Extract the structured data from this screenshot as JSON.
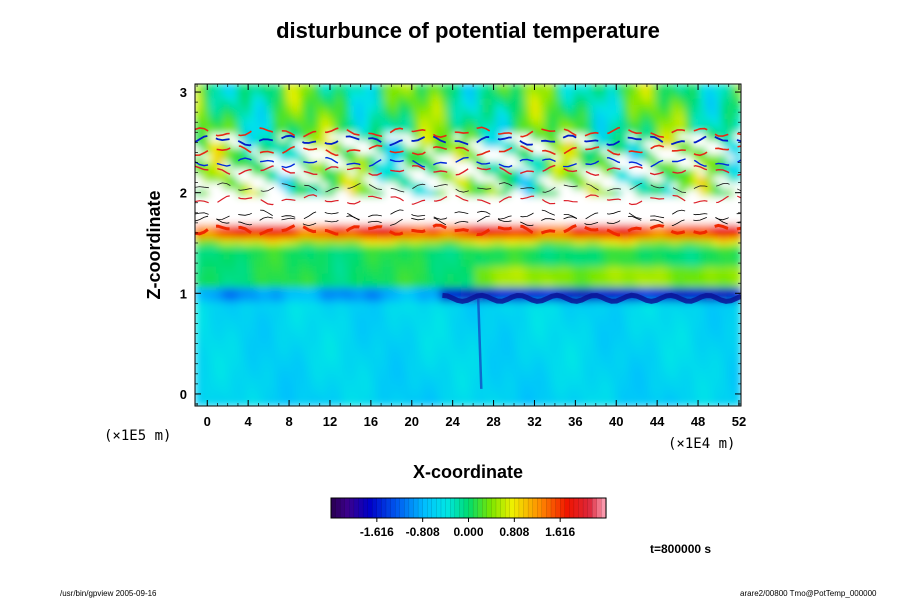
{
  "chart_data": {
    "type": "heatmap",
    "title": "disturbunce of potential temperature",
    "xlabel": "X-coordinate",
    "ylabel": "Z-coordinate",
    "x_unit": "(×1E4 m)",
    "y_unit": "(×1E5 m)",
    "x_ticks": [
      0,
      4,
      8,
      12,
      16,
      20,
      24,
      28,
      32,
      36,
      40,
      44,
      48,
      52
    ],
    "y_ticks": [
      0,
      1,
      2,
      3
    ],
    "xlim": [
      -1.2,
      52.2
    ],
    "ylim": [
      -0.12,
      3.08
    ],
    "colorbar": {
      "min": -2.424,
      "max": 2.424,
      "tick_values": [
        -1.616,
        -0.808,
        0.0,
        0.808,
        1.616
      ],
      "tick_labels": [
        "-1.616",
        "-0.808",
        "0.000",
        "0.808",
        "1.616"
      ]
    },
    "time_label": "t=800000 s",
    "field_description": {
      "lower_layer_0_to_1": "mostly cyan/light blue (about -0.8 to -0.3)",
      "band_near_1": "dark blue strip (about -1.6 to -2.0) from x=24 to x=52",
      "layer_1_to_1_6": "green (about 0 to 0.3), yellow-orange near 1.6",
      "band_1_6_to_1_9": "red-orange band then white (out of range)",
      "layer_1_9_to_2_6": "alternating white gaps with red and blue thin streaks",
      "top_2_6_to_3": "green with blue and red blobs"
    }
  },
  "footer": {
    "left": "/usr/bin/gpview 2005-09-16",
    "right": "arare2/00800 Tmo@PotTemp_000000"
  }
}
